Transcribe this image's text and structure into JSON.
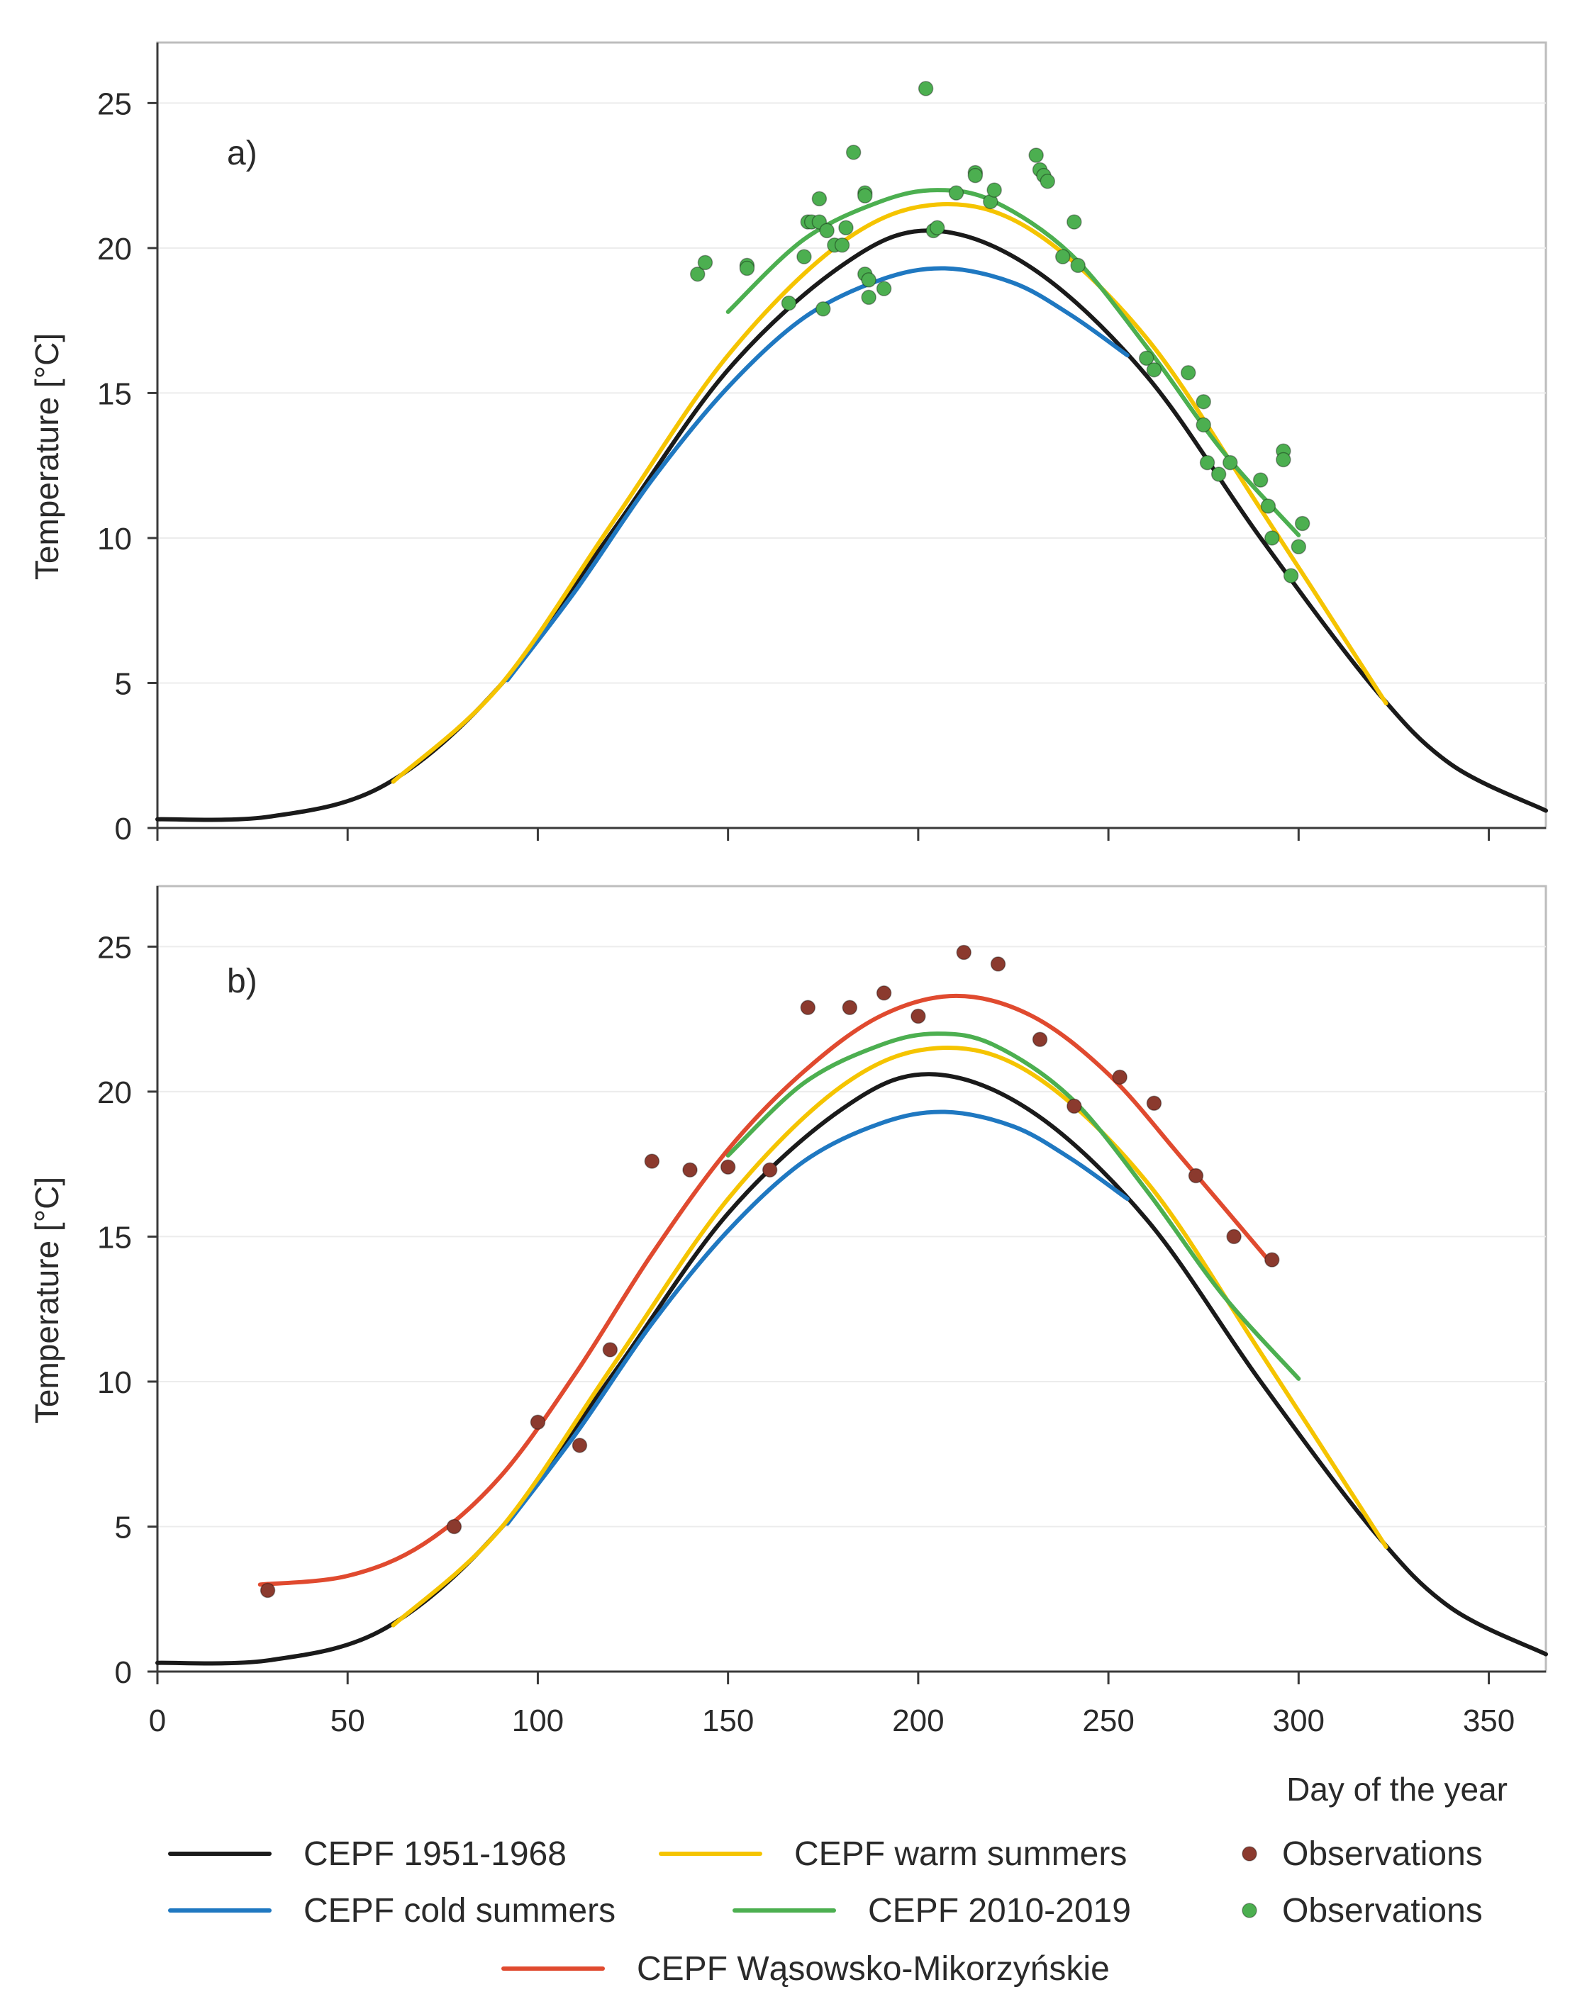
{
  "chart_data": [
    {
      "type": "line",
      "panel_label": "a)",
      "xlabel": "",
      "ylabel": "Temperature [°C]",
      "xlim": [
        0,
        365
      ],
      "ylim": [
        0,
        27
      ],
      "yticks": [
        0,
        5,
        10,
        15,
        20,
        25
      ],
      "xticks": [
        0,
        50,
        100,
        150,
        200,
        250,
        300,
        350
      ],
      "grid": "horizontal",
      "series": [
        {
          "name": "CEPF 1951-1968",
          "color": "#1a1a1a",
          "x": [
            0,
            30,
            60,
            90,
            120,
            150,
            180,
            203,
            230,
            260,
            290,
            320,
            340,
            365
          ],
          "values": [
            0.3,
            0.4,
            1.5,
            4.9,
            10.3,
            15.8,
            19.4,
            20.6,
            19.3,
            15.6,
            10.0,
            4.8,
            2.2,
            0.6
          ]
        },
        {
          "name": "CEPF cold summers",
          "color": "#1f78c1",
          "x": [
            92,
            110,
            130,
            150,
            170,
            190,
            207,
            225,
            240,
            255
          ],
          "values": [
            5.1,
            8.2,
            12.0,
            15.2,
            17.6,
            18.9,
            19.3,
            18.8,
            17.7,
            16.3
          ]
        },
        {
          "name": "CEPF warm summers",
          "color": "#f5c400",
          "x": [
            62,
            90,
            120,
            150,
            180,
            205,
            230,
            260,
            290,
            323
          ],
          "values": [
            1.6,
            4.9,
            10.6,
            16.3,
            20.2,
            21.5,
            20.6,
            16.9,
            11.0,
            4.3
          ]
        },
        {
          "name": "CEPF 2010-2019",
          "color": "#4caf50",
          "x": [
            150,
            170,
            190,
            205,
            220,
            240,
            260,
            280,
            300
          ],
          "values": [
            17.8,
            20.3,
            21.6,
            22.0,
            21.6,
            19.8,
            16.6,
            13.0,
            10.1
          ]
        }
      ],
      "observations": {
        "name": "Observations",
        "color": "#4caf50",
        "x": [
          142,
          144,
          155,
          155,
          166,
          170,
          171,
          172,
          174,
          174,
          175,
          176,
          178,
          180,
          181,
          183,
          186,
          186,
          186,
          187,
          187,
          191,
          202,
          204,
          205,
          210,
          215,
          215,
          219,
          220,
          231,
          232,
          233,
          234,
          238,
          241,
          242,
          260,
          262,
          271,
          275,
          275,
          276,
          279,
          282,
          290,
          292,
          293,
          296,
          296,
          298,
          300,
          301
        ],
        "values": [
          19.1,
          19.5,
          19.4,
          19.3,
          18.1,
          19.7,
          20.9,
          20.9,
          21.7,
          20.9,
          17.9,
          20.6,
          20.1,
          20.1,
          20.7,
          23.3,
          21.9,
          21.8,
          19.1,
          18.9,
          18.3,
          18.6,
          25.5,
          20.6,
          20.7,
          21.9,
          22.6,
          22.5,
          21.6,
          22.0,
          23.2,
          22.7,
          22.5,
          22.3,
          19.7,
          20.9,
          19.4,
          16.2,
          15.8,
          15.7,
          14.7,
          13.9,
          12.6,
          12.2,
          12.6,
          12.0,
          11.1,
          10.0,
          13.0,
          12.7,
          8.7,
          9.7,
          10.5
        ]
      }
    },
    {
      "type": "line",
      "panel_label": "b)",
      "xlabel": "Day of the year",
      "ylabel": "Temperature [°C]",
      "xlim": [
        0,
        365
      ],
      "ylim": [
        0,
        27
      ],
      "yticks": [
        0,
        5,
        10,
        15,
        20,
        25
      ],
      "xticks": [
        0,
        50,
        100,
        150,
        200,
        250,
        300,
        350
      ],
      "grid": "horizontal",
      "series": [
        {
          "name": "CEPF 1951-1968",
          "color": "#1a1a1a",
          "x": [
            0,
            30,
            60,
            90,
            120,
            150,
            180,
            203,
            230,
            260,
            290,
            320,
            340,
            365
          ],
          "values": [
            0.3,
            0.4,
            1.5,
            4.9,
            10.3,
            15.8,
            19.4,
            20.6,
            19.3,
            15.6,
            10.0,
            4.8,
            2.2,
            0.6
          ]
        },
        {
          "name": "CEPF cold summers",
          "color": "#1f78c1",
          "x": [
            92,
            110,
            130,
            150,
            170,
            190,
            207,
            225,
            240,
            255
          ],
          "values": [
            5.1,
            8.2,
            12.0,
            15.2,
            17.6,
            18.9,
            19.3,
            18.8,
            17.7,
            16.3
          ]
        },
        {
          "name": "CEPF warm summers",
          "color": "#f5c400",
          "x": [
            62,
            90,
            120,
            150,
            180,
            205,
            230,
            260,
            290,
            323
          ],
          "values": [
            1.6,
            4.9,
            10.6,
            16.3,
            20.2,
            21.5,
            20.6,
            16.9,
            11.0,
            4.3
          ]
        },
        {
          "name": "CEPF 2010-2019",
          "color": "#4caf50",
          "x": [
            150,
            170,
            190,
            205,
            220,
            240,
            260,
            280,
            300
          ],
          "values": [
            17.8,
            20.3,
            21.6,
            22.0,
            21.6,
            19.8,
            16.6,
            13.0,
            10.1
          ]
        },
        {
          "name": "CEPF Wąsowsko-Mikorzyńskie",
          "color": "#e04a2f",
          "x": [
            27,
            50,
            70,
            90,
            110,
            130,
            150,
            170,
            190,
            210,
            230,
            250,
            270,
            292
          ],
          "values": [
            3.0,
            3.3,
            4.4,
            6.7,
            10.3,
            14.4,
            18.0,
            20.7,
            22.6,
            23.3,
            22.6,
            20.6,
            17.6,
            14.2
          ]
        }
      ],
      "observations": {
        "name": "Observations",
        "color": "#8b3a2e",
        "x": [
          29,
          78,
          100,
          111,
          119,
          130,
          140,
          150,
          161,
          171,
          182,
          191,
          200,
          212,
          221,
          232,
          241,
          253,
          262,
          273,
          283,
          293
        ],
        "values": [
          2.8,
          5.0,
          8.6,
          7.8,
          11.1,
          17.6,
          17.3,
          17.4,
          17.3,
          22.9,
          22.9,
          23.4,
          22.6,
          24.8,
          24.4,
          21.8,
          19.5,
          20.5,
          19.6,
          17.1,
          15.0,
          14.2
        ]
      }
    }
  ],
  "legend": {
    "items": [
      {
        "label": "CEPF 1951-1968",
        "kind": "line",
        "color": "#1a1a1a"
      },
      {
        "label": "CEPF warm summers",
        "kind": "line",
        "color": "#f5c400"
      },
      {
        "label": "Observations",
        "kind": "dot",
        "color": "#8b3a2e"
      },
      {
        "label": "CEPF cold summers",
        "kind": "line",
        "color": "#1f78c1"
      },
      {
        "label": "CEPF 2010-2019",
        "kind": "line",
        "color": "#4caf50"
      },
      {
        "label": "Observations",
        "kind": "dot",
        "color": "#4caf50"
      },
      {
        "label": "CEPF Wąsowsko-Mikorzyńskie",
        "kind": "line",
        "color": "#e04a2f"
      }
    ]
  }
}
